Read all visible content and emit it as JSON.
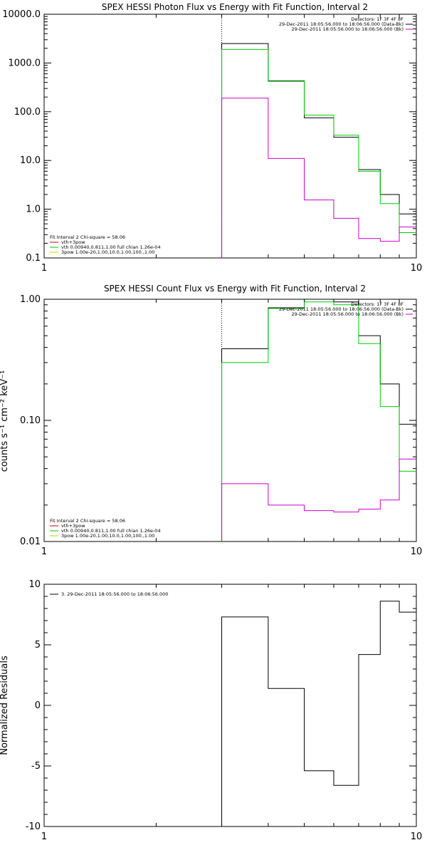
{
  "chart_data": [
    {
      "type": "line",
      "title": "SPEX HESSI Photon Flux vs Energy with Fit Function, Interval 2",
      "ylabel": "",
      "xscale": "log",
      "yscale": "log",
      "xlim": [
        1,
        10
      ],
      "ylim": [
        0.1,
        10000
      ],
      "x_ticks": [
        "1",
        "10"
      ],
      "y_ticks": [
        "0.1",
        "1.0",
        "10.0",
        "100.0",
        "1000.0",
        "10000.0"
      ],
      "reference_line_x": 3,
      "bin_edges": [
        3,
        4,
        5,
        6,
        7,
        8,
        9,
        10
      ],
      "series": [
        {
          "color": "#000000",
          "values": [
            2500,
            430,
            75,
            30,
            6.5,
            2.0,
            0.8
          ]
        },
        {
          "color": "#00cc00",
          "values": [
            1900,
            420,
            85,
            33,
            6.0,
            1.3,
            0.33
          ]
        },
        {
          "color": "#cc00cc",
          "values": [
            190,
            11,
            1.55,
            0.65,
            0.25,
            0.22,
            0.43
          ]
        }
      ],
      "legend_top": [
        {
          "text": "Detectors: 1F 3F 4F 8F",
          "color": ""
        },
        {
          "text": "29-Dec-2011 18:05:56.000 to 18:06:56.000 (Data-Bk)",
          "color": "#000000"
        },
        {
          "text": "29-Dec-2011 18:05:56.000 to 18:06:56.000 (Bk)",
          "color": "#cc00cc"
        }
      ],
      "legend_bottom": [
        {
          "text": "Fit Interval 2   Chi-square = 58.06",
          "color": ""
        },
        {
          "text": "vth+3pow",
          "color": "#cc0000"
        },
        {
          "text": "vth 0.00940,0.811,1.00  full chian 1.26e-04",
          "color": "#00cc00"
        },
        {
          "text": "3pow 1.00e-20,1.00,10.0,1.00,100.,1.00",
          "color": "#cccc00"
        }
      ]
    },
    {
      "type": "line",
      "title": "SPEX HESSI Count Flux vs Energy with Fit Function, Interval 2",
      "ylabel": "counts s⁻¹ cm⁻² keV⁻¹",
      "xscale": "log",
      "yscale": "log",
      "xlim": [
        1,
        10
      ],
      "ylim": [
        0.01,
        1.0
      ],
      "x_ticks": [
        "1",
        "10"
      ],
      "y_ticks": [
        "0.01",
        "0.10",
        "1.00"
      ],
      "reference_line_x": 3,
      "bin_edges": [
        3,
        4,
        5,
        6,
        7,
        8,
        9,
        10
      ],
      "series": [
        {
          "color": "#000000",
          "values": [
            0.39,
            0.85,
            1.0,
            0.95,
            0.5,
            0.2,
            0.093
          ]
        },
        {
          "color": "#00cc00",
          "values": [
            0.3,
            0.84,
            0.95,
            0.9,
            0.43,
            0.13,
            0.038
          ]
        },
        {
          "color": "#cc00cc",
          "values": [
            0.03,
            0.02,
            0.018,
            0.0175,
            0.0185,
            0.022,
            0.048
          ]
        }
      ],
      "legend_top": [
        {
          "text": "Detectors: 1F 3F 4F 8F",
          "color": ""
        },
        {
          "text": "29-Dec-2011 18:05:56.000 to 18:06:56.000 (Data-Bk)",
          "color": "#000000"
        },
        {
          "text": "29-Dec-2011 18:05:56.000 to 18:06:56.000 (Bk)",
          "color": "#cc00cc"
        }
      ],
      "legend_bottom": [
        {
          "text": "Fit Interval 2   Chi-square = 58.06",
          "color": ""
        },
        {
          "text": "vth+3pow",
          "color": "#cc0000"
        },
        {
          "text": "vth 0.00940,0.811,1.00  full chian 1.26e-04",
          "color": "#00cc00"
        },
        {
          "text": "3pow 1.00e-20,1.00,10.0,1.00,100.,1.00",
          "color": "#cccc00"
        }
      ]
    },
    {
      "type": "line",
      "title": "",
      "ylabel": "Normalized Residuals",
      "xscale": "log",
      "yscale": "linear",
      "xlim": [
        1,
        10
      ],
      "ylim": [
        -10,
        10
      ],
      "x_ticks": [
        "1",
        "10"
      ],
      "y_ticks": [
        "-10",
        "-5",
        "0",
        "5",
        "10"
      ],
      "bin_edges": [
        3,
        4,
        5,
        6,
        7,
        8,
        9,
        10
      ],
      "series": [
        {
          "color": "#000000",
          "values": [
            7.3,
            1.4,
            -5.4,
            -6.6,
            4.2,
            8.6,
            7.7
          ]
        }
      ],
      "legend_top": [
        {
          "text": "3. 29-Dec-2011 18:05:56.000 to 18:06:56.000",
          "color": "#000000"
        }
      ]
    }
  ]
}
